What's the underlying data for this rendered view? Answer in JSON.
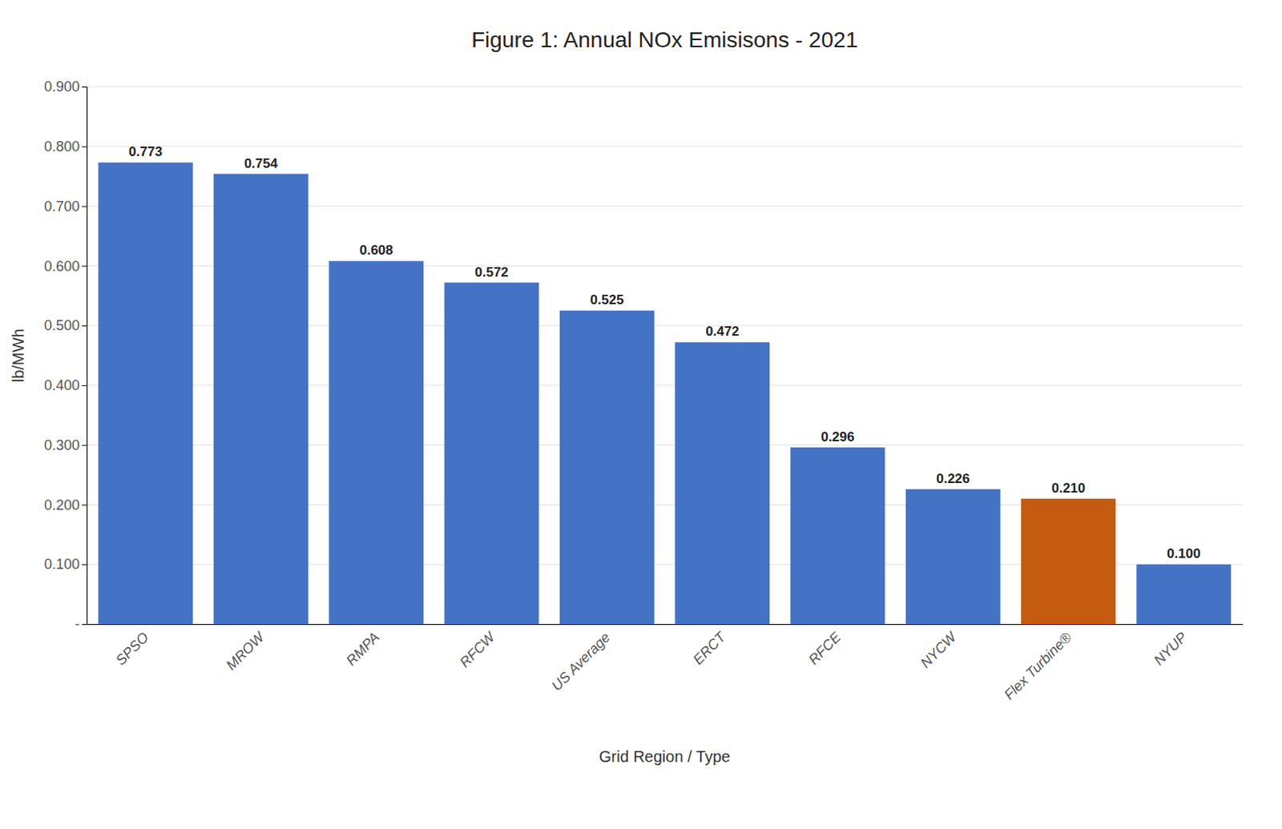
{
  "chart_data": {
    "type": "bar",
    "title": "Figure 1: Annual NOx Emisisons - 2021",
    "xlabel": "Grid Region / Type",
    "ylabel": "lb/MWh",
    "categories": [
      "SPSO",
      "MROW",
      "RMPA",
      "RFCW",
      "US Average",
      "ERCT",
      "RFCE",
      "NYCW",
      "Flex Turbine®",
      "NYUP"
    ],
    "values": [
      0.773,
      0.754,
      0.608,
      0.572,
      0.525,
      0.472,
      0.296,
      0.226,
      0.21,
      0.1
    ],
    "value_labels": [
      "0.773",
      "0.754",
      "0.608",
      "0.572",
      "0.525",
      "0.472",
      "0.296",
      "0.226",
      "0.210",
      "0.100"
    ],
    "data_labels": true,
    "colors": [
      "#4472C4",
      "#4472C4",
      "#4472C4",
      "#4472C4",
      "#4472C4",
      "#4472C4",
      "#4472C4",
      "#4472C4",
      "#C55A11",
      "#4472C4"
    ],
    "ylim": [
      0,
      0.9
    ],
    "yticks": [
      {
        "value": 0.0,
        "label": "-"
      },
      {
        "value": 0.1,
        "label": "0.100"
      },
      {
        "value": 0.2,
        "label": "0.200"
      },
      {
        "value": 0.3,
        "label": "0.300"
      },
      {
        "value": 0.4,
        "label": "0.400"
      },
      {
        "value": 0.5,
        "label": "0.500"
      },
      {
        "value": 0.6,
        "label": "0.600"
      },
      {
        "value": 0.7,
        "label": "0.700"
      },
      {
        "value": 0.8,
        "label": "0.800"
      },
      {
        "value": 0.9,
        "label": "0.900"
      }
    ],
    "grid": true
  }
}
